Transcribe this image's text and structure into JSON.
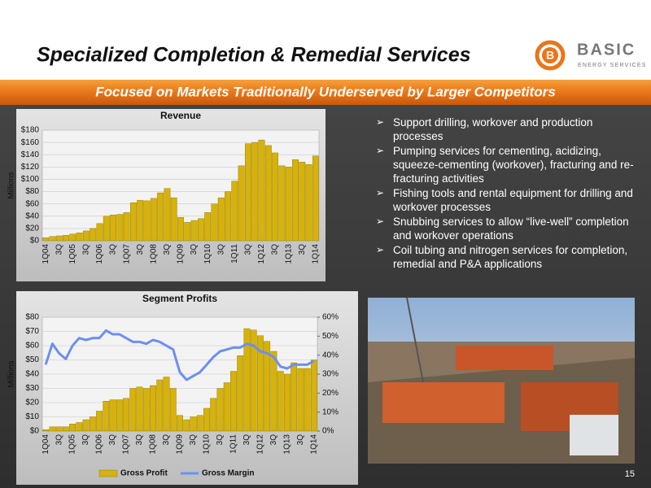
{
  "header": {
    "title": "Specialized Completion & Remedial Services",
    "banner": "Focused on Markets Traditionally Underserved by Larger Competitors"
  },
  "logo": {
    "letter": "B",
    "name": "BASIC",
    "tagline": "ENERGY SERVICES"
  },
  "bullets": [
    "Support drilling, workover and production processes",
    "Pumping services for cementing, acidizing, squeeze-cementing (workover), fracturing and re-fracturing activities",
    "Fishing tools and rental equipment for drilling and workover processes",
    "Snubbing services to allow “live-well” completion and workover operations",
    "Coil tubing and nitrogen services for completion, remedial and P&A applications"
  ],
  "page_number": "15",
  "chart_data": [
    {
      "type": "bar",
      "title": "Revenue",
      "y_label": "Millions",
      "categories": [
        "1Q04",
        null,
        "3Q",
        null,
        "1Q05",
        null,
        "3Q",
        null,
        "1Q06",
        null,
        "3Q",
        null,
        "1Q07",
        null,
        "3Q",
        null,
        "1Q08",
        null,
        "3Q",
        null,
        "1Q09",
        null,
        "3Q",
        null,
        "1Q10",
        null,
        "3Q",
        null,
        "1Q11",
        null,
        "3Q",
        null,
        "1Q12",
        null,
        "3Q",
        null,
        "1Q13",
        null,
        "3Q",
        null,
        "1Q14"
      ],
      "values": [
        5,
        7,
        8,
        9,
        11,
        13,
        16,
        20,
        28,
        40,
        42,
        43,
        46,
        62,
        66,
        65,
        69,
        78,
        85,
        70,
        38,
        30,
        33,
        36,
        46,
        60,
        70,
        80,
        97,
        122,
        158,
        160,
        164,
        155,
        143,
        122,
        120,
        132,
        128,
        124,
        138
      ],
      "color": "#d6b20a",
      "ylim": [
        0,
        180
      ],
      "yticks": [
        {
          "value": 0,
          "label": "$0"
        },
        {
          "value": 20,
          "label": "$20"
        },
        {
          "value": 40,
          "label": "$40"
        },
        {
          "value": 60,
          "label": "$60"
        },
        {
          "value": 80,
          "label": "$80"
        },
        {
          "value": 100,
          "label": "$100"
        },
        {
          "value": 120,
          "label": "$120"
        },
        {
          "value": 140,
          "label": "$140"
        },
        {
          "value": 160,
          "label": "$160"
        },
        {
          "value": 180,
          "label": "$180"
        }
      ],
      "grid": true
    },
    {
      "type": "combo",
      "title": "Segment Profits",
      "y_label": "Millions",
      "categories": [
        "1Q04",
        null,
        "3Q",
        null,
        "1Q05",
        null,
        "3Q",
        null,
        "1Q06",
        null,
        "3Q",
        null,
        "1Q07",
        null,
        "3Q",
        null,
        "1Q08",
        null,
        "3Q",
        null,
        "1Q09",
        null,
        "3Q",
        null,
        "1Q10",
        null,
        "3Q",
        null,
        "1Q11",
        null,
        "3Q",
        null,
        "1Q12",
        null,
        "3Q",
        null,
        "1Q13",
        null,
        "3Q",
        null,
        "1Q14"
      ],
      "series": [
        {
          "name": "Gross Profit",
          "color": "#d6b20a",
          "values": [
            1,
            3,
            3,
            3,
            5,
            6,
            8,
            10,
            14,
            21,
            22,
            22,
            23,
            30,
            31,
            30,
            32,
            36,
            38,
            30,
            11,
            8,
            10,
            11,
            16,
            23,
            30,
            34,
            42,
            53,
            72,
            71,
            67,
            63,
            56,
            42,
            40,
            48,
            44,
            44,
            50
          ]
        },
        {
          "name": "Gross Margin",
          "color": "#6c8ff0",
          "axis": "y2",
          "values": [
            35,
            46,
            41,
            38,
            45,
            49,
            48,
            49,
            49,
            53,
            51,
            51,
            49,
            47,
            47,
            46,
            48,
            47,
            45,
            43,
            31,
            27,
            29,
            31,
            35,
            39,
            42,
            43,
            44,
            44,
            46,
            45,
            42,
            41,
            39,
            34,
            33,
            35,
            35,
            35,
            37
          ]
        }
      ],
      "ylim": [
        0,
        80
      ],
      "yticks": [
        {
          "value": 0,
          "label": "$0"
        },
        {
          "value": 10,
          "label": "$10"
        },
        {
          "value": 20,
          "label": "$20"
        },
        {
          "value": 30,
          "label": "$30"
        },
        {
          "value": 40,
          "label": "$40"
        },
        {
          "value": 50,
          "label": "$50"
        },
        {
          "value": 60,
          "label": "$60"
        },
        {
          "value": 70,
          "label": "$70"
        },
        {
          "value": 80,
          "label": "$80"
        }
      ],
      "y2lim": [
        0,
        60
      ],
      "y2ticks": [
        {
          "value": 0,
          "label": "0%"
        },
        {
          "value": 10,
          "label": "10%"
        },
        {
          "value": 20,
          "label": "20%"
        },
        {
          "value": 30,
          "label": "30%"
        },
        {
          "value": 40,
          "label": "40%"
        },
        {
          "value": 50,
          "label": "50%"
        },
        {
          "value": 60,
          "label": "60%"
        }
      ],
      "grid": true,
      "legend": "bottom"
    }
  ]
}
